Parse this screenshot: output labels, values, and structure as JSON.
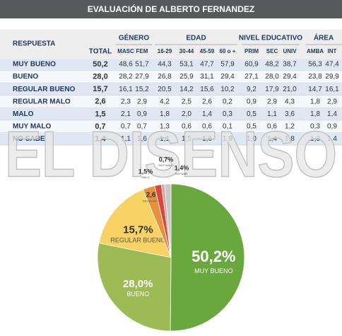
{
  "header": {
    "title": "EVALUACIÓN DE  ALBERTO FERNANDEZ"
  },
  "watermark": "EL DISENSO",
  "table": {
    "answer_header": "RESPUESTA",
    "total_header": "TOTAL",
    "groups": [
      {
        "label": "GÉNERO",
        "columns": [
          "MASC",
          "FEM"
        ]
      },
      {
        "label": "EDAD",
        "columns": [
          "16-29",
          "30-44",
          "45-59",
          "60 o +"
        ]
      },
      {
        "label": "NIVEL EDUCATIVO",
        "columns": [
          "PRIM",
          "SEC",
          "UNIV"
        ]
      },
      {
        "label": "ÁREA",
        "columns": [
          "AMBA",
          "INT"
        ]
      }
    ],
    "rows": [
      [
        "MUY BUENO",
        "50,2",
        "48,6",
        "51,7",
        "44,3",
        "53,1",
        "47,7",
        "57,9",
        "60,9",
        "48,2",
        "38,7",
        "56,3",
        "47,4"
      ],
      [
        "BUENO",
        "28,0",
        "28,2",
        "27,9",
        "26,8",
        "25,9",
        "31,1",
        "29,4",
        "27,1",
        "28,0",
        "29,4",
        "23,8",
        "29,9"
      ],
      [
        "REGULAR BUENO",
        "15,7",
        "16,1",
        "15,2",
        "20,5",
        "14,2",
        "15,6",
        "10,2",
        "9,2",
        "17,9",
        "21,0",
        "14,7",
        "16,1"
      ],
      [
        "REGULAR MALO",
        "2,6",
        "2,3",
        "2,9",
        "4,2",
        "2,5",
        "2,6",
        "0,2",
        "0,9",
        "2,9",
        "4,3",
        "1,8",
        "2,9"
      ],
      [
        "MALO",
        "1,5",
        "2,1",
        "0,9",
        "1,8",
        "2,0",
        "1,4",
        "0,3",
        "0,5",
        "1,1",
        "3,6",
        "1,8",
        "1,4"
      ],
      [
        "MUY MALO",
        "0,7",
        "0,7",
        "0,7",
        "1,3",
        "0,6",
        "0,6",
        "0,1",
        "0,5",
        "0,6",
        "1,2",
        "0,3",
        "0,9"
      ],
      [
        "NO SABE",
        "1,4",
        "1,1",
        "1,6",
        "1,1",
        "1,5",
        "1,6",
        "1,9",
        "1,0",
        "1,4",
        "1,8",
        "1,3",
        "1,4"
      ]
    ]
  },
  "chart_data": {
    "type": "pie",
    "categories": [
      "MUY BUENO",
      "BUENO",
      "REGULAR BUENO",
      "REGULAR MALO",
      "MALO",
      "MUY MALO",
      "NO SABE"
    ],
    "values": [
      50.2,
      28.0,
      15.7,
      2.6,
      1.5,
      0.7,
      1.4
    ],
    "value_labels": [
      "50,2%",
      "28,0%",
      "15,7%",
      "2,6%",
      "1,5%",
      "0,7%",
      "1,4%"
    ],
    "colors": [
      "#6aa83e",
      "#9dbb55",
      "#f8d264",
      "#e8913c",
      "#d8493a",
      "#d9a3a3",
      "#c9c9c9"
    ]
  }
}
